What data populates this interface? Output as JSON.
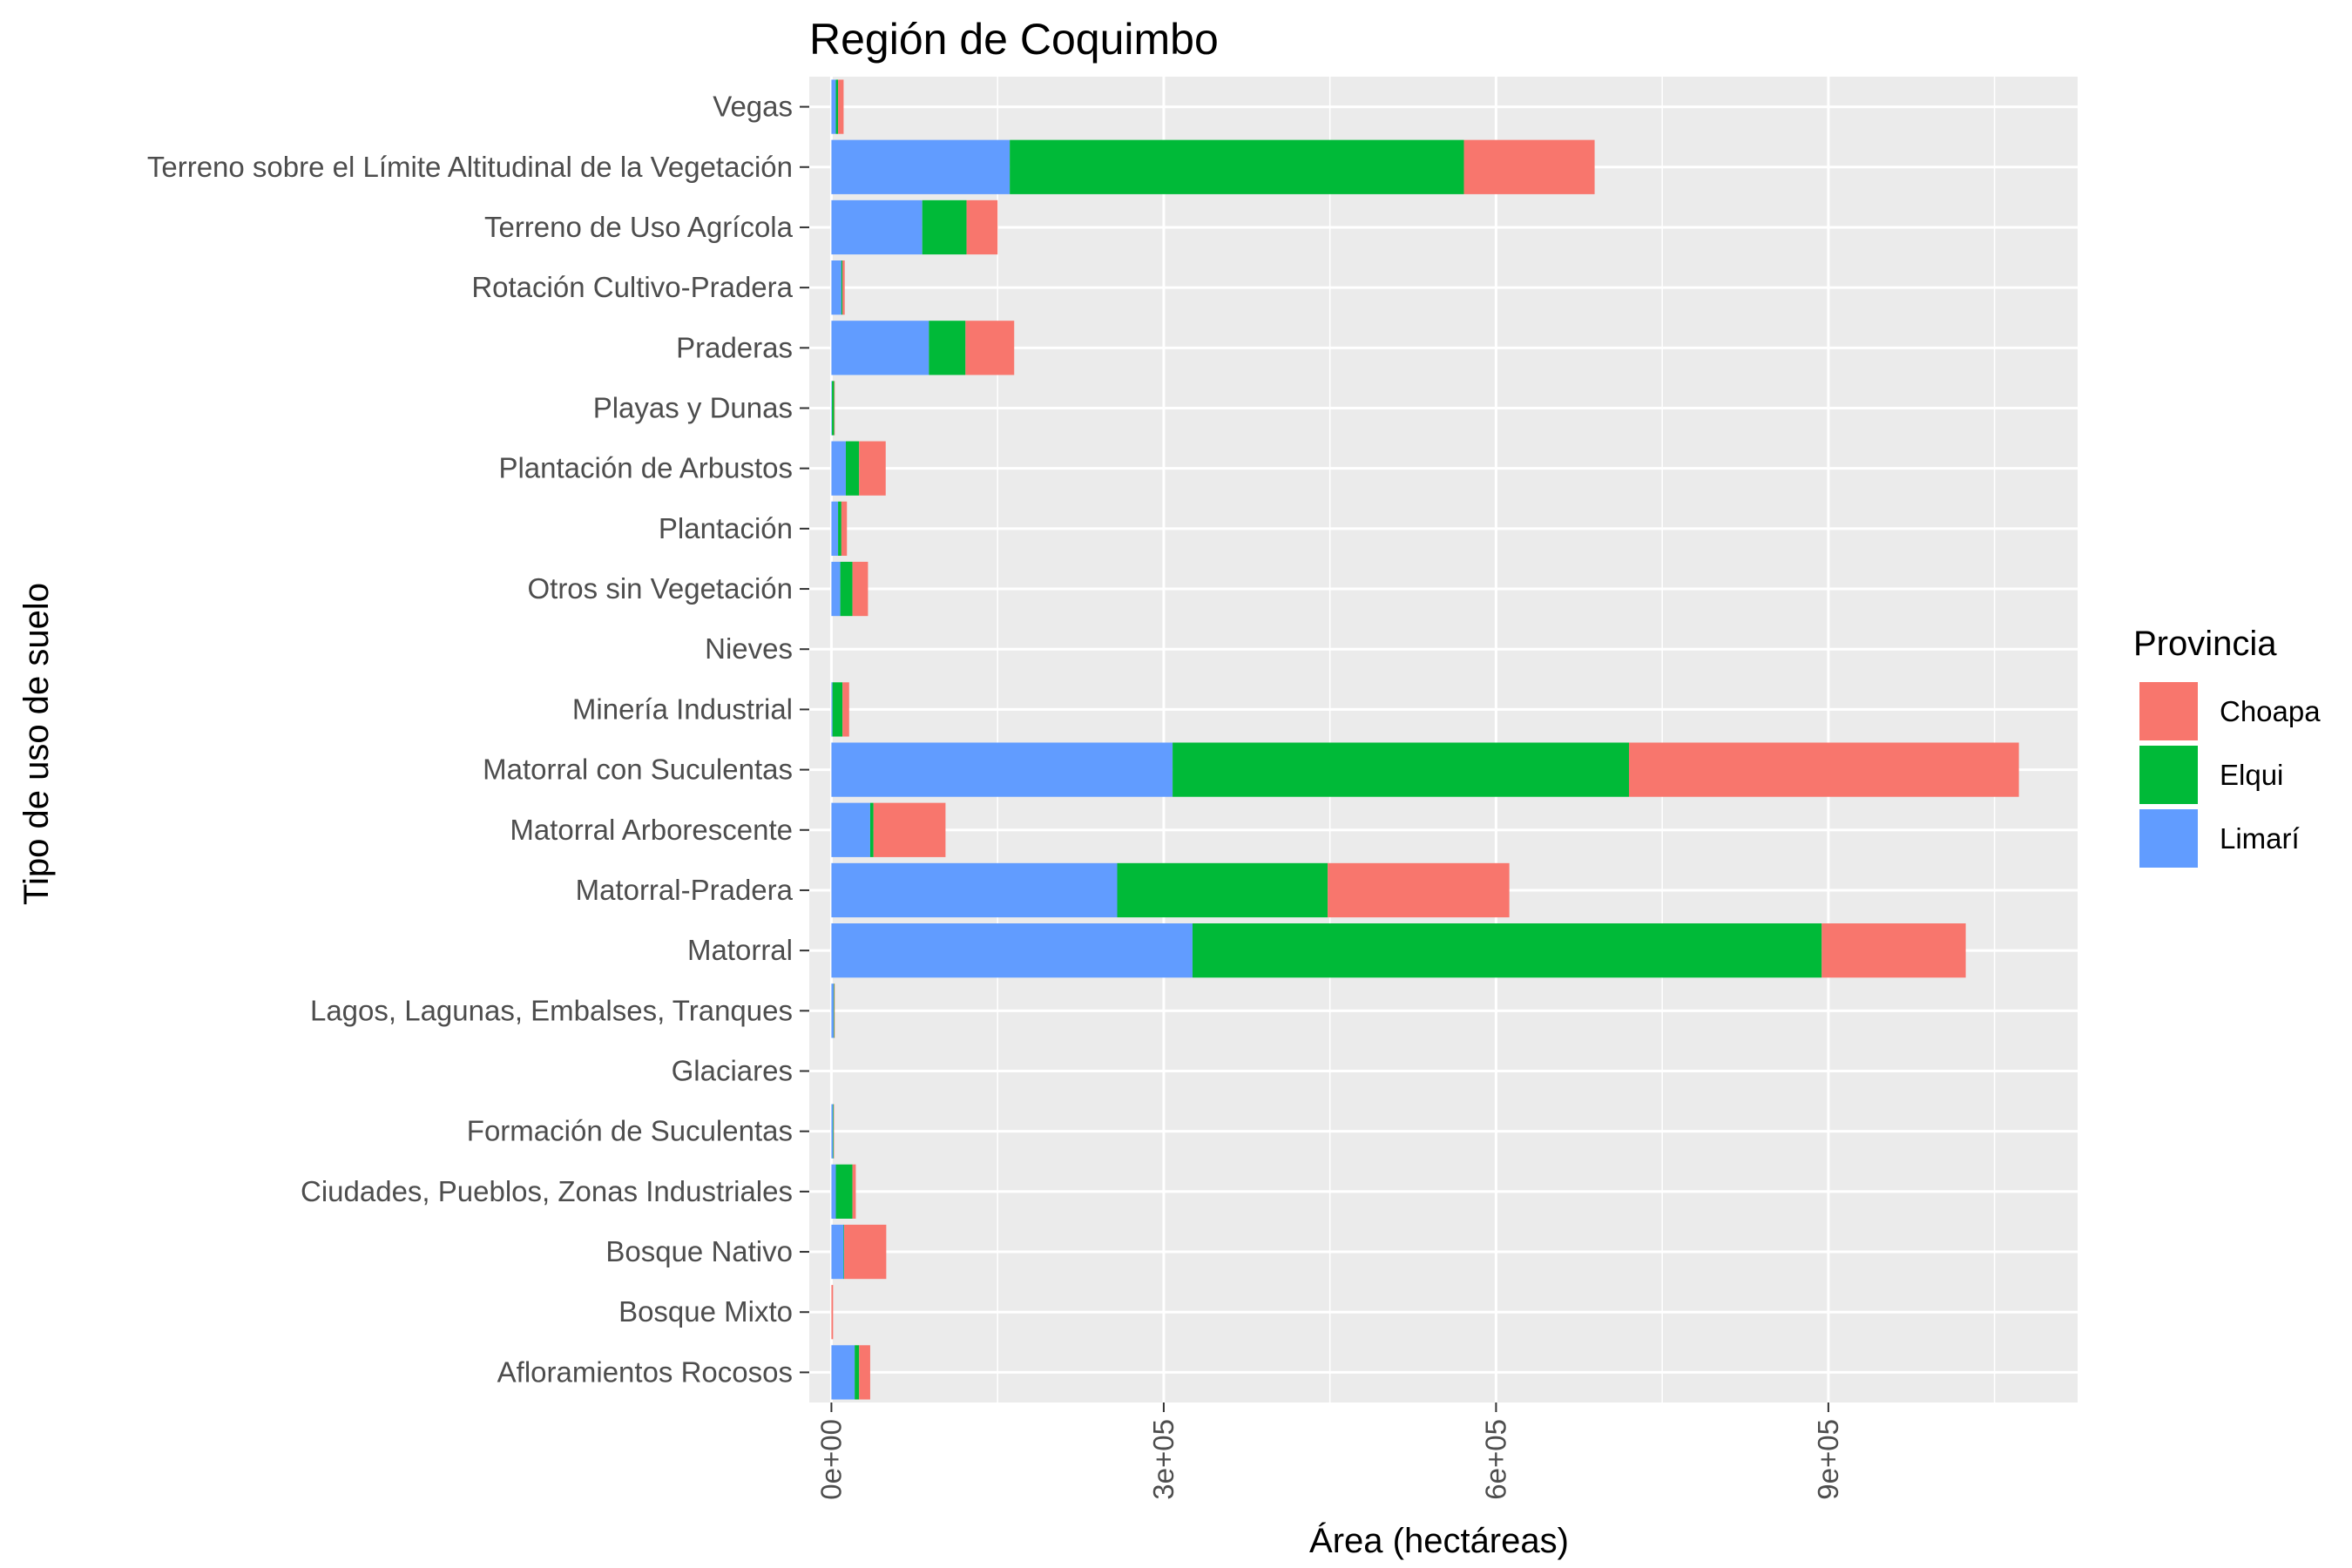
{
  "chart_data": {
    "type": "bar",
    "orientation": "horizontal",
    "stacked": true,
    "title": "Región de Coquimbo",
    "xlabel": "Área (hectáreas)",
    "ylabel": "Tipo de uso de suelo",
    "xlim": [
      -20000,
      1125000
    ],
    "x_ticks": [
      0,
      300000,
      600000,
      900000
    ],
    "x_tick_labels": [
      "0e+00",
      "3e+05",
      "6e+05",
      "9e+05"
    ],
    "grid": true,
    "legend": {
      "title": "Provincia",
      "position": "right"
    },
    "categories": [
      "Vegas",
      "Terreno sobre el Límite Altitudinal de la Vegetación",
      "Terreno de Uso Agrícola",
      "Rotación Cultivo-Pradera",
      "Praderas",
      "Playas y Dunas",
      "Plantación de Arbustos",
      "Plantación",
      "Otros sin Vegetación",
      "Nieves",
      "Minería Industrial",
      "Matorral con Suculentas",
      "Matorral Arborescente",
      "Matorral-Pradera",
      "Matorral",
      "Lagos, Lagunas, Embalses, Tranques",
      "Glaciares",
      "Formación de Suculentas",
      "Ciudades, Pueblos, Zonas Industriales",
      "Bosque Nativo",
      "Bosque Mixto",
      "Afloramientos Rocosos"
    ],
    "stack_order": [
      "Limarí",
      "Elqui",
      "Choapa"
    ],
    "series": [
      {
        "name": "Choapa",
        "color": "#F8766D",
        "values": [
          5000,
          118000,
          28000,
          2000,
          44000,
          500,
          24000,
          5000,
          14000,
          0,
          6000,
          352000,
          65000,
          164000,
          130000,
          500,
          0,
          300,
          3000,
          38000,
          1500,
          10000
        ]
      },
      {
        "name": "Elqui",
        "color": "#00BA38",
        "values": [
          2000,
          410000,
          40000,
          1000,
          33000,
          2000,
          12000,
          3000,
          11000,
          0,
          9000,
          412000,
          3000,
          190000,
          568000,
          500,
          0,
          500,
          15000,
          500,
          0,
          4000
        ]
      },
      {
        "name": "Limarí",
        "color": "#619CFF",
        "values": [
          4000,
          161000,
          82000,
          9000,
          88000,
          500,
          13000,
          6000,
          8000,
          0,
          1000,
          308000,
          35000,
          258000,
          326000,
          2000,
          0,
          1500,
          4000,
          11000,
          0,
          21000
        ]
      }
    ]
  }
}
